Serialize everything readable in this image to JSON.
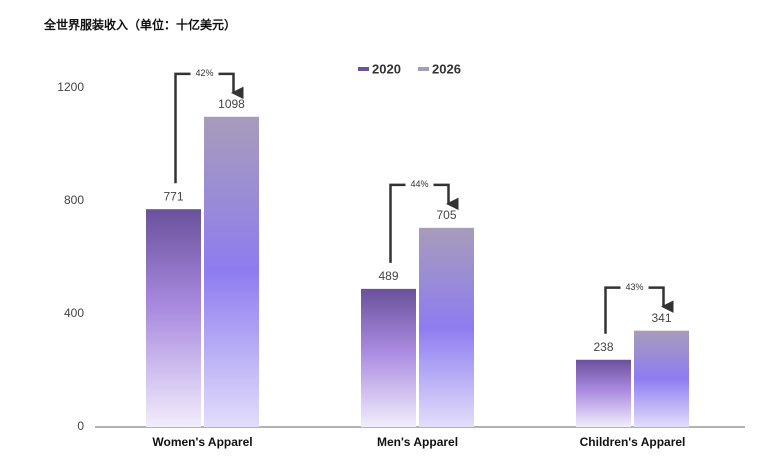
{
  "chart_data": {
    "type": "bar",
    "title": "全世界服装收入（单位：十亿美元）",
    "categories": [
      "Women's Apparel",
      "Men's Apparel",
      "Children's Apparel"
    ],
    "series": [
      {
        "name": "2020",
        "color": "#6a519c",
        "values": [
          771,
          489,
          238
        ]
      },
      {
        "name": "2026",
        "color": "#a79cba",
        "values": [
          1098,
          705,
          341
        ]
      }
    ],
    "annotations": [
      "42%",
      "44%",
      "43%"
    ],
    "ylim": [
      0,
      1200
    ],
    "yticks": [
      0,
      400,
      800,
      1200
    ],
    "grid": false
  }
}
